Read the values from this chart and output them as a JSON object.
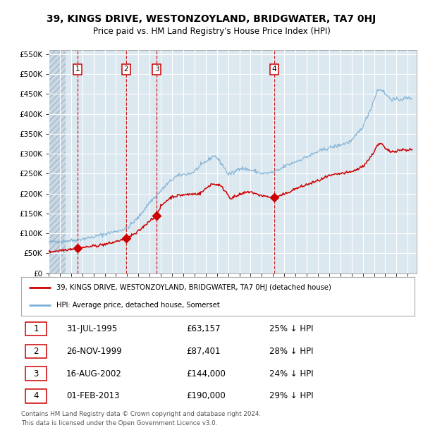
{
  "title": "39, KINGS DRIVE, WESTONZOYLAND, BRIDGWATER, TA7 0HJ",
  "subtitle": "Price paid vs. HM Land Registry's House Price Index (HPI)",
  "legend_label_red": "39, KINGS DRIVE, WESTONZOYLAND, BRIDGWATER, TA7 0HJ (detached house)",
  "legend_label_blue": "HPI: Average price, detached house, Somerset",
  "footer_line1": "Contains HM Land Registry data © Crown copyright and database right 2024.",
  "footer_line2": "This data is licensed under the Open Government Licence v3.0.",
  "sales": [
    {
      "num": 1,
      "date": "31-JUL-1995",
      "price": 63157,
      "price_str": "£63,157",
      "pct": "25% ↓ HPI",
      "x_year": 1995.58
    },
    {
      "num": 2,
      "date": "26-NOV-1999",
      "price": 87401,
      "price_str": "£87,401",
      "pct": "28% ↓ HPI",
      "x_year": 1999.91
    },
    {
      "num": 3,
      "date": "16-AUG-2002",
      "price": 144000,
      "price_str": "£144,000",
      "pct": "24% ↓ HPI",
      "x_year": 2002.63
    },
    {
      "num": 4,
      "date": "01-FEB-2013",
      "price": 190000,
      "price_str": "£190,000",
      "pct": "29% ↓ HPI",
      "x_year": 2013.09
    }
  ],
  "vline_color": "#cc0000",
  "red_line_color": "#cc0000",
  "blue_line_color": "#7bafd4",
  "background_color": "#dce8f0",
  "ylim": [
    0,
    560000
  ],
  "yticks": [
    0,
    50000,
    100000,
    150000,
    200000,
    250000,
    300000,
    350000,
    400000,
    450000,
    500000,
    550000
  ],
  "xlim_start": 1993.0,
  "xlim_end": 2025.8
}
